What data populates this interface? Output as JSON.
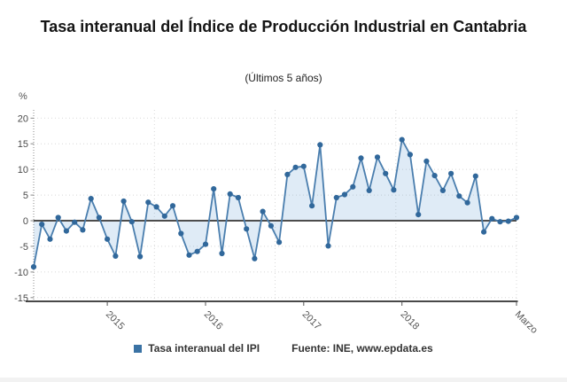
{
  "title": "Tasa interanual del Índice de Producción Industrial en Cantabria",
  "subtitle": "(Últimos 5 años)",
  "legend": {
    "series_label": "Tasa interanual del IPI"
  },
  "source": "Fuente: INE, www.epdata.es",
  "colors": {
    "line": "#4a7eae",
    "marker": "#31689b",
    "area_fill": "rgba(110,165,215,0.22)",
    "zero_line": "#4d4d4d",
    "legend_square": "#3a72a4"
  },
  "chart_data": {
    "type": "area",
    "title": "Tasa interanual del Índice de Producción Industrial en Cantabria",
    "subtitle": "(Últimos 5 años)",
    "ylabel": "%",
    "x_description": "60 monthly observations (últimos 5 años), ending in Marzo",
    "values": [
      -9.0,
      -0.7,
      -3.6,
      0.6,
      -2.0,
      -0.3,
      -1.8,
      4.3,
      0.6,
      -3.6,
      -6.9,
      3.8,
      -0.2,
      -7.0,
      3.6,
      2.7,
      0.9,
      2.9,
      -2.5,
      -6.7,
      -6.0,
      -4.6,
      6.2,
      -6.4,
      5.2,
      4.5,
      -1.6,
      -7.4,
      1.8,
      -1.0,
      -4.2,
      9.0,
      10.4,
      10.6,
      2.9,
      14.8,
      -4.9,
      4.5,
      5.1,
      6.6,
      12.2,
      5.9,
      12.4,
      9.2,
      6.0,
      15.8,
      12.9,
      1.2,
      11.6,
      8.8,
      5.9,
      9.2,
      4.8,
      3.5,
      8.7,
      -2.2,
      0.4,
      -0.2,
      -0.1,
      0.6
    ],
    "x_ticks": [
      {
        "label": "2015",
        "index": 9
      },
      {
        "label": "2016",
        "index": 21
      },
      {
        "label": "2017",
        "index": 33
      },
      {
        "label": "2018",
        "index": 45
      },
      {
        "label": "Marzo",
        "index": 59
      }
    ],
    "y_ticks": [
      20,
      15,
      10,
      5,
      0,
      -5,
      -10,
      -15
    ],
    "ylim": [
      -15.5,
      21.6
    ],
    "threshold": 0,
    "grid": true,
    "legend_position": "bottom"
  }
}
